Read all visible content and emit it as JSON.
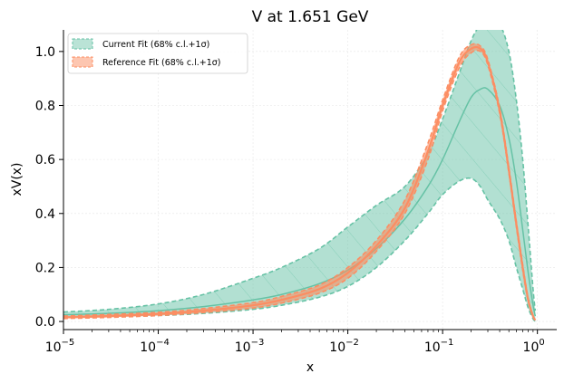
{
  "chart_data": {
    "type": "line",
    "title": "V at 1.651 GeV",
    "xlabel": "x",
    "ylabel": "xV(x)",
    "xscale": "log",
    "xlim": [
      1e-05,
      1.6
    ],
    "ylim": [
      -0.03,
      1.08
    ],
    "x_ticks": [
      {
        "value": 1e-05,
        "label": "10",
        "exp": "−5"
      },
      {
        "value": 0.0001,
        "label": "10",
        "exp": "−4"
      },
      {
        "value": 0.001,
        "label": "10",
        "exp": "−3"
      },
      {
        "value": 0.01,
        "label": "10",
        "exp": "−2"
      },
      {
        "value": 0.1,
        "label": "10",
        "exp": "−1"
      },
      {
        "value": 1,
        "label": "10",
        "exp": "0"
      }
    ],
    "y_ticks": [
      {
        "value": 0.0,
        "label": "0.0"
      },
      {
        "value": 0.2,
        "label": "0.2"
      },
      {
        "value": 0.4,
        "label": "0.4"
      },
      {
        "value": 0.6,
        "label": "0.6"
      },
      {
        "value": 0.8,
        "label": "0.8"
      },
      {
        "value": 1.0,
        "label": "1.0"
      }
    ],
    "grid": true,
    "legend_position": "top-left",
    "x": [
      1e-05,
      3e-05,
      0.0001,
      0.0003,
      0.001,
      0.002,
      0.005,
      0.01,
      0.02,
      0.04,
      0.07,
      0.1,
      0.15,
      0.2,
      0.25,
      0.3,
      0.4,
      0.5,
      0.6,
      0.7,
      0.8,
      0.9,
      0.95
    ],
    "series": [
      {
        "name": "Current Fit (68% c.l.+1σ)",
        "color": "#66c2a5",
        "central": [
          0.025,
          0.03,
          0.04,
          0.055,
          0.08,
          0.1,
          0.14,
          0.19,
          0.27,
          0.38,
          0.5,
          0.6,
          0.74,
          0.83,
          0.86,
          0.86,
          0.8,
          0.68,
          0.52,
          0.34,
          0.18,
          0.06,
          0.02
        ],
        "upper": [
          0.035,
          0.045,
          0.065,
          0.1,
          0.16,
          0.2,
          0.27,
          0.35,
          0.43,
          0.5,
          0.62,
          0.75,
          0.92,
          1.04,
          1.1,
          1.12,
          1.1,
          1.0,
          0.82,
          0.6,
          0.35,
          0.12,
          0.04
        ],
        "lower": [
          0.015,
          0.017,
          0.022,
          0.03,
          0.045,
          0.06,
          0.09,
          0.13,
          0.2,
          0.3,
          0.4,
          0.47,
          0.52,
          0.53,
          0.5,
          0.45,
          0.38,
          0.3,
          0.2,
          0.12,
          0.05,
          0.01,
          0.0
        ],
        "style": "dashed-band"
      },
      {
        "name": "Reference Fit (68% c.l.+1σ)",
        "color": "#fc8d62",
        "central": [
          0.015,
          0.02,
          0.028,
          0.04,
          0.06,
          0.08,
          0.12,
          0.18,
          0.28,
          0.42,
          0.63,
          0.8,
          0.96,
          1.01,
          1.01,
          0.96,
          0.78,
          0.56,
          0.36,
          0.2,
          0.08,
          0.02,
          0.005
        ],
        "upper": [
          0.02,
          0.026,
          0.034,
          0.048,
          0.07,
          0.093,
          0.135,
          0.2,
          0.3,
          0.45,
          0.66,
          0.82,
          0.98,
          1.025,
          1.02,
          0.97,
          0.79,
          0.57,
          0.37,
          0.21,
          0.085,
          0.022,
          0.006
        ],
        "lower": [
          0.011,
          0.015,
          0.022,
          0.033,
          0.05,
          0.068,
          0.105,
          0.16,
          0.26,
          0.4,
          0.6,
          0.78,
          0.94,
          0.995,
          1.0,
          0.95,
          0.77,
          0.55,
          0.35,
          0.19,
          0.075,
          0.018,
          0.004
        ],
        "style": "dashed-band"
      }
    ]
  }
}
